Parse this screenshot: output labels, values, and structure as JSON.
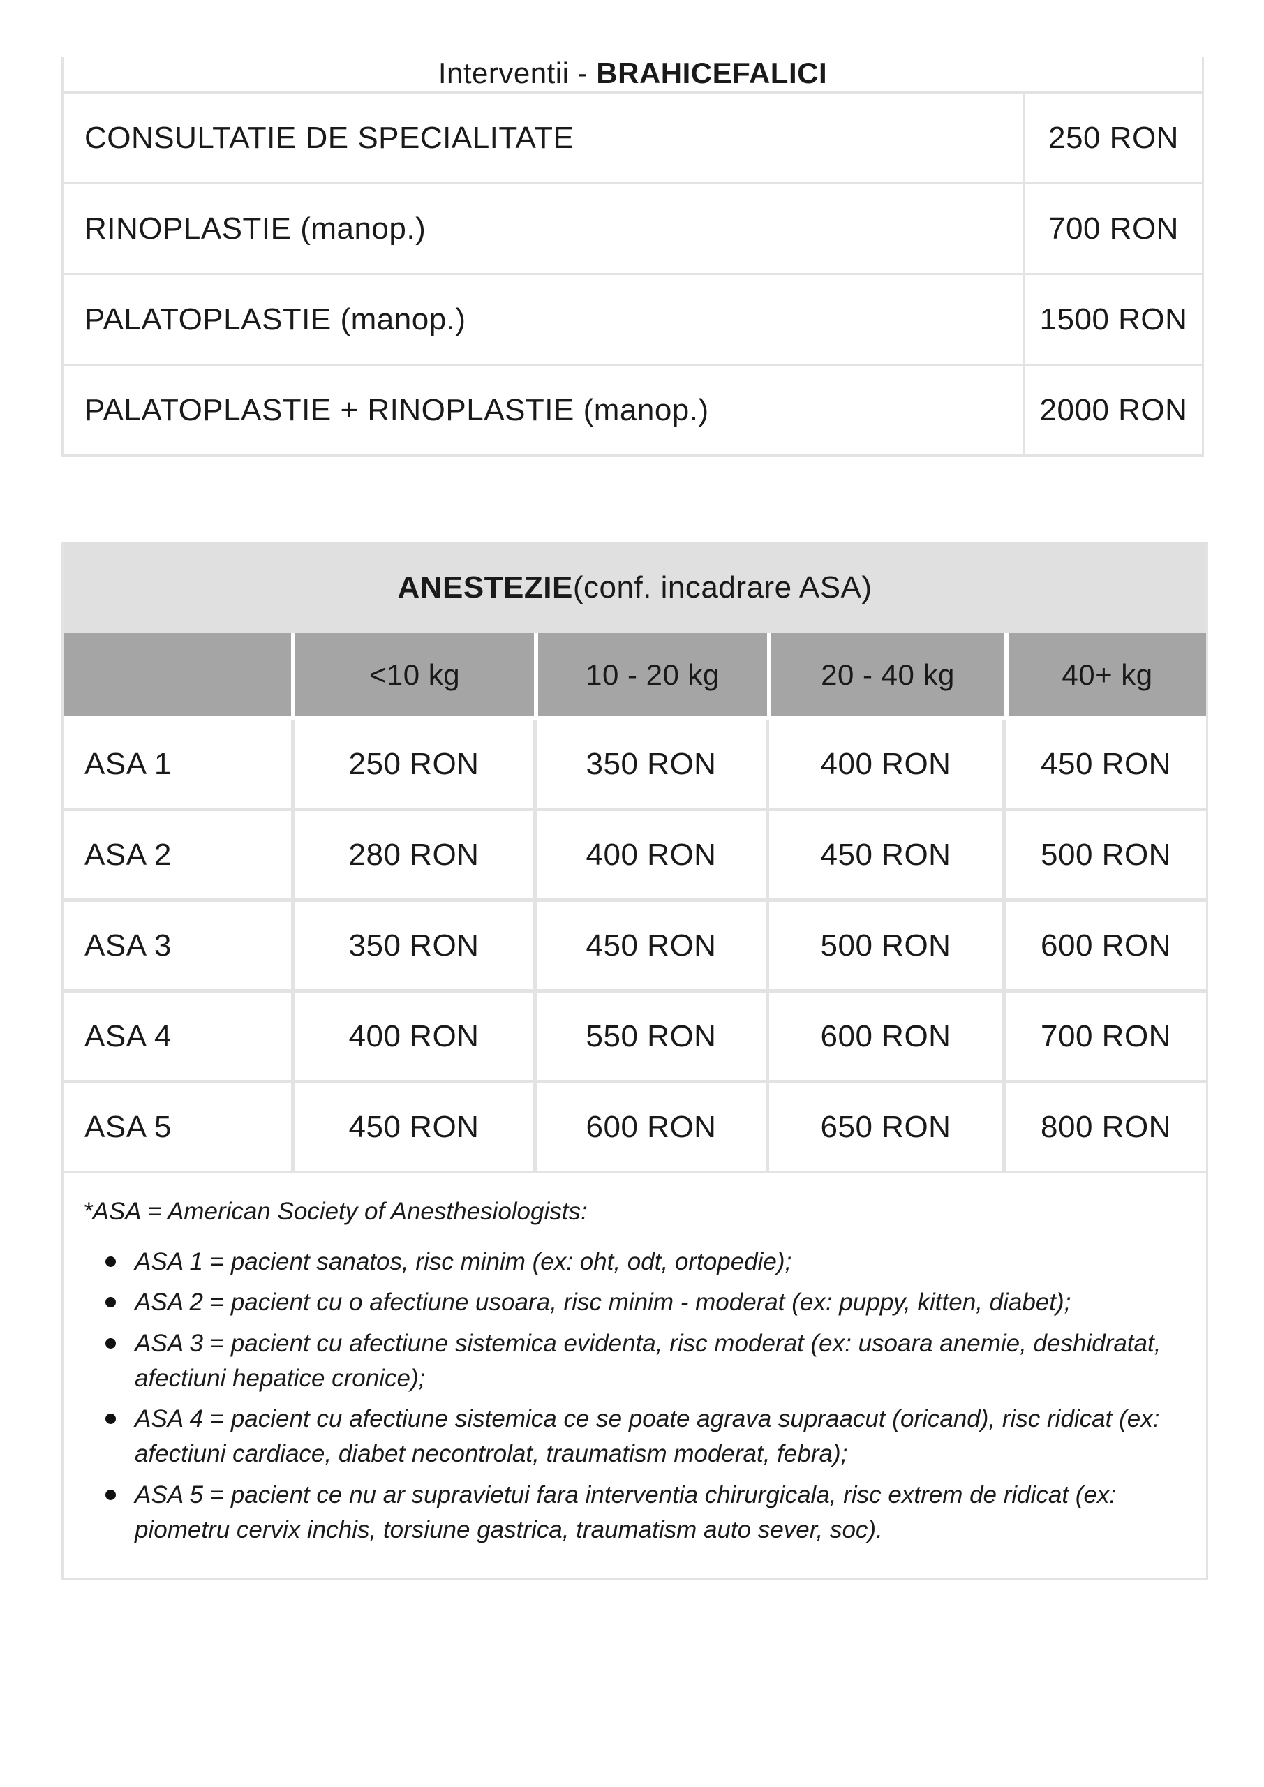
{
  "colors": {
    "border": "#e3e3e3",
    "table2_title_bg": "#e0e0e0",
    "table2_header_bg": "#a5a5a5",
    "text": "#1a1a1a"
  },
  "table1": {
    "title_prefix": "Interventii - ",
    "title_bold": "BRAHICEFALICI",
    "rows": [
      {
        "label": "CONSULTATIE DE SPECIALITATE",
        "price": "250 RON"
      },
      {
        "label": "RINOPLASTIE (manop.)",
        "price": "700 RON"
      },
      {
        "label": "PALATOPLASTIE (manop.)",
        "price": "1500 RON"
      },
      {
        "label": "PALATOPLASTIE + RINOPLASTIE (manop.)",
        "price": "2000 RON"
      }
    ]
  },
  "table2": {
    "title_bold": "ANESTEZIE",
    "title_rest": " (conf. incadrare ASA)",
    "col_headers": [
      "",
      "<10 kg",
      "10 - 20 kg",
      "20 - 40 kg",
      "40+ kg"
    ],
    "rows": [
      {
        "label": "ASA 1",
        "values": [
          "250 RON",
          "350 RON",
          "400 RON",
          "450 RON"
        ]
      },
      {
        "label": "ASA 2",
        "values": [
          "280 RON",
          "400 RON",
          "450 RON",
          "500 RON"
        ]
      },
      {
        "label": "ASA 3",
        "values": [
          "350 RON",
          "450 RON",
          "500 RON",
          "600 RON"
        ]
      },
      {
        "label": "ASA 4",
        "values": [
          "400 RON",
          "550 RON",
          "600 RON",
          "700 RON"
        ]
      },
      {
        "label": "ASA 5",
        "values": [
          "450 RON",
          "600 RON",
          "650 RON",
          "800 RON"
        ]
      }
    ],
    "footnote_title": "*ASA = American Society of Anesthesiologists:",
    "footnotes": [
      "ASA 1 = pacient sanatos, risc minim (ex: oht, odt, ortopedie);",
      "ASA 2 = pacient cu o afectiune usoara, risc minim - moderat (ex: puppy, kitten, diabet);",
      "ASA 3 = pacient cu afectiune sistemica evidenta, risc moderat (ex: usoara anemie, deshidratat, afectiuni hepatice cronice);",
      "ASA 4 = pacient cu afectiune sistemica ce se poate agrava supraacut (oricand), risc ridicat (ex: afectiuni cardiace, diabet necontrolat, traumatism moderat, febra);",
      "ASA 5 = pacient ce nu ar supravietui fara interventia chirurgicala, risc extrem de ridicat (ex: piometru cervix inchis, torsiune gastrica, traumatism auto sever, soc)."
    ]
  }
}
